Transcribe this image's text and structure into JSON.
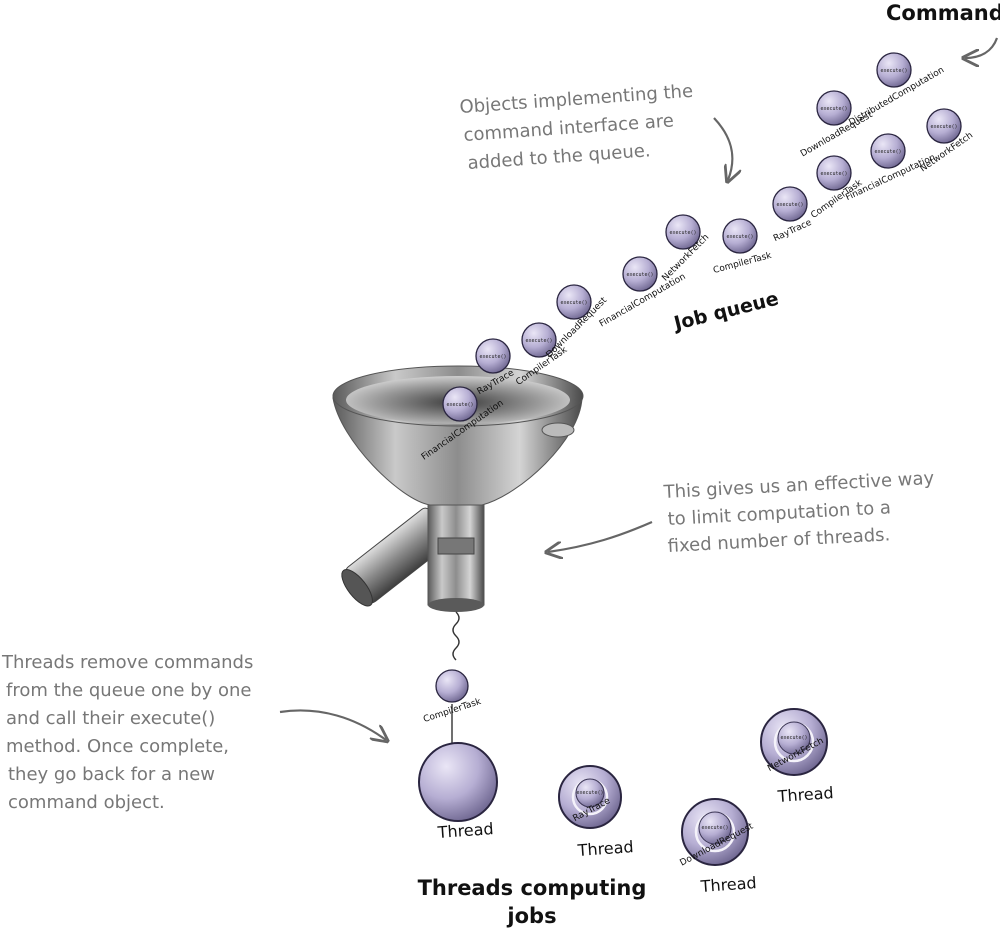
{
  "labels": {
    "commands": "Commands",
    "job_queue": "Job queue",
    "threads_computing": [
      "Threads computing",
      "jobs"
    ],
    "thread": "Thread",
    "execute": "execute()"
  },
  "annotations": {
    "objects": [
      "Objects implementing the",
      "command interface are",
      "added to the queue."
    ],
    "effective": [
      "This gives us an effective way",
      "to limit computation to a",
      "fixed number of threads."
    ],
    "threads_remove": [
      "Threads remove commands",
      "from the queue one by one",
      "and call their execute()",
      "method.  Once complete,",
      "they go back for a new",
      "command object."
    ]
  },
  "queue": [
    "FinancialComputation",
    "RayTrace",
    "CompilerTask",
    "DownloadRequest",
    "FinancialComputation",
    "NetworkFetch",
    "CompilerTask",
    "RayTrace",
    "CompilerTask",
    "DownloadRequest",
    "DistributedComputation",
    "FinancialComputation",
    "NetworkFetch"
  ],
  "dequeued": "CompilerTask",
  "threads": [
    {
      "job": ""
    },
    {
      "job": "RayTrace"
    },
    {
      "job": "NetworkFetch"
    },
    {
      "job": "DownloadRequest"
    }
  ],
  "colors": {
    "ball_fill": "#b6aed3",
    "ball_stroke": "#2a2540",
    "annotation": "#777777"
  }
}
